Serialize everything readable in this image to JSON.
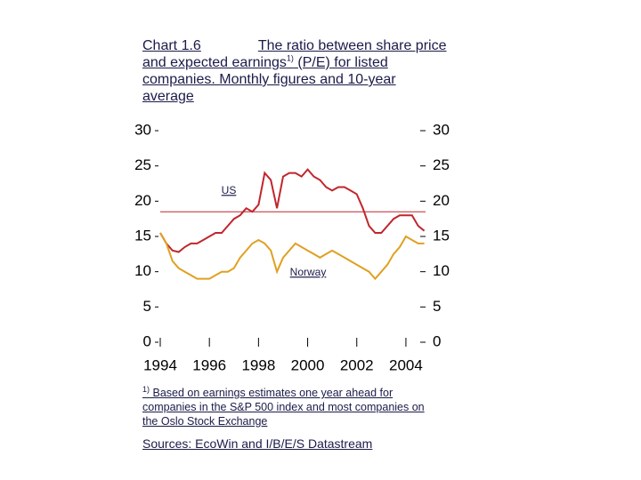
{
  "chart_data": {
    "type": "line",
    "chart_number": "Chart 1.6",
    "title": "The ratio between share price and expected earnings",
    "title_footnote_mark": "1)",
    "title_rest": "(P/E) for listed companies. Monthly figures and 10-year average",
    "x": [
      1994,
      1994.25,
      1994.5,
      1994.75,
      1995,
      1995.25,
      1995.5,
      1995.75,
      1996,
      1996.25,
      1996.5,
      1996.75,
      1997,
      1997.25,
      1997.5,
      1997.75,
      1998,
      1998.25,
      1998.5,
      1998.75,
      1999,
      1999.25,
      1999.5,
      1999.75,
      2000,
      2000.25,
      2000.5,
      2000.75,
      2001,
      2001.25,
      2001.5,
      2001.75,
      2002,
      2002.25,
      2002.5,
      2002.75,
      2003,
      2003.25,
      2003.5,
      2003.75,
      2004,
      2004.25,
      2004.5,
      2004.75
    ],
    "series": [
      {
        "name": "US",
        "color": "#c0262c",
        "average": 18.5,
        "values": [
          15.5,
          14,
          13,
          12.8,
          13.5,
          14,
          14,
          14.5,
          15,
          15.5,
          15.5,
          16.5,
          17.5,
          18,
          19,
          18.5,
          19.5,
          24,
          23,
          19,
          23.5,
          24,
          24,
          23.5,
          24.5,
          23.5,
          23,
          22,
          21.5,
          22,
          22,
          21.5,
          21,
          19,
          16.5,
          15.5,
          15.5,
          16.5,
          17.5,
          18,
          18,
          18,
          16.5,
          15.8
        ]
      },
      {
        "name": "Norway",
        "color": "#e0a020",
        "values": [
          15.5,
          14,
          11.5,
          10.5,
          10,
          9.5,
          9,
          9,
          9,
          9.5,
          10,
          10,
          10.5,
          12,
          13,
          14,
          14.5,
          14,
          13,
          10,
          12,
          13,
          14,
          13.5,
          13,
          12.5,
          12,
          12.5,
          13,
          12.5,
          12,
          11.5,
          11,
          10.5,
          10,
          9,
          10,
          11,
          12.5,
          13.5,
          15,
          14.5,
          14,
          14
        ]
      }
    ],
    "xlim": [
      1994,
      2004.8
    ],
    "xticks": [
      1994,
      1996,
      1998,
      2000,
      2002,
      2004
    ],
    "ylim": [
      0,
      30
    ],
    "yticks": [
      0,
      5,
      10,
      15,
      20,
      25,
      30
    ],
    "y2lim": [
      0,
      30
    ],
    "y2ticks": [
      0,
      5,
      10,
      15,
      20,
      25,
      30
    ],
    "footnote_mark": "1)",
    "footnote": "Based on earnings estimates one year ahead for companies in the S&P 500 index and most companies on the Oslo Stock Exchange",
    "sources": "Sources: EcoWin and I/B/E/S Datastream"
  }
}
